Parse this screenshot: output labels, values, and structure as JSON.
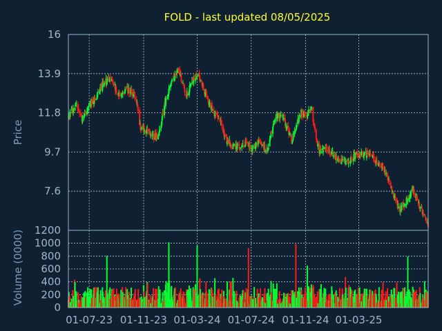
{
  "chart_data": {
    "type": "candlestick",
    "title": "FOLD - last updated 08/05/2025",
    "price_panel": {
      "ylabel": "Price",
      "ylim": [
        5.5,
        16
      ],
      "yticks": [
        "16",
        "13.9",
        "11.8",
        "9.7",
        "7.6"
      ],
      "ytick_values": [
        16,
        13.9,
        11.8,
        9.7,
        7.6
      ]
    },
    "volume_panel": {
      "ylabel": "Volume (0000)",
      "ylim": [
        0,
        1200
      ],
      "yticks": [
        "1200",
        "1000",
        "800",
        "600",
        "400",
        "200",
        "0"
      ],
      "ytick_values": [
        1200,
        1000,
        800,
        600,
        400,
        200,
        0
      ]
    },
    "x_tick_labels": [
      "01-07-23",
      "01-11-23",
      "01-03-24",
      "01-07-24",
      "01-11-24",
      "01-03-25"
    ],
    "x_range": [
      "2023-05-15",
      "2025-08-05"
    ],
    "x_tick_dates": [
      "2023-07-01",
      "2023-11-01",
      "2024-03-01",
      "2024-07-01",
      "2024-11-01",
      "2025-03-01"
    ],
    "price_path": {
      "dates": [
        "2023-05-15",
        "2023-06-01",
        "2023-06-15",
        "2023-07-01",
        "2023-07-15",
        "2023-08-01",
        "2023-08-20",
        "2023-09-05",
        "2023-09-25",
        "2023-10-15",
        "2023-10-25",
        "2023-11-10",
        "2023-11-25",
        "2023-12-05",
        "2023-12-18",
        "2024-01-05",
        "2024-01-20",
        "2024-02-05",
        "2024-02-20",
        "2024-03-05",
        "2024-03-20",
        "2024-04-05",
        "2024-04-20",
        "2024-05-05",
        "2024-05-20",
        "2024-06-05",
        "2024-06-20",
        "2024-07-05",
        "2024-07-20",
        "2024-08-05",
        "2024-08-25",
        "2024-09-10",
        "2024-10-01",
        "2024-10-20",
        "2024-11-01",
        "2024-11-15",
        "2024-12-01",
        "2024-12-20",
        "2025-01-10",
        "2025-02-01",
        "2025-02-20",
        "2025-03-10",
        "2025-03-25",
        "2025-04-10",
        "2025-04-25",
        "2025-05-15",
        "2025-06-01",
        "2025-06-15",
        "2025-07-01",
        "2025-07-15",
        "2025-08-05"
      ],
      "closes": [
        11.6,
        12.2,
        11.4,
        12.3,
        12.5,
        13.4,
        13.6,
        12.8,
        13.1,
        12.6,
        11.0,
        10.9,
        10.5,
        10.6,
        12.2,
        13.6,
        14.1,
        12.7,
        13.6,
        13.8,
        12.8,
        11.9,
        11.5,
        10.4,
        10.0,
        10.0,
        10.2,
        9.8,
        10.4,
        9.7,
        11.7,
        11.6,
        10.3,
        11.8,
        11.7,
        11.9,
        9.7,
        9.9,
        9.4,
        9.1,
        9.5,
        9.6,
        9.6,
        9.2,
        8.9,
        7.7,
        6.6,
        7.0,
        7.7,
        6.9,
        5.8
      ]
    },
    "volume_scale": 1000,
    "volume_spike_dates": [
      "2023-08-10",
      "2023-10-15",
      "2023-12-28",
      "2024-03-01",
      "2024-06-25",
      "2024-10-10",
      "2024-11-05",
      "2024-12-15",
      "2025-06-20",
      "2025-07-20"
    ],
    "colors": {
      "up": "#00ff33",
      "down": "#ff1a1a",
      "grid": "#b8c4d0",
      "frame": "#9fb6cc",
      "title": "#ffff33",
      "background": "#0f2033"
    }
  }
}
